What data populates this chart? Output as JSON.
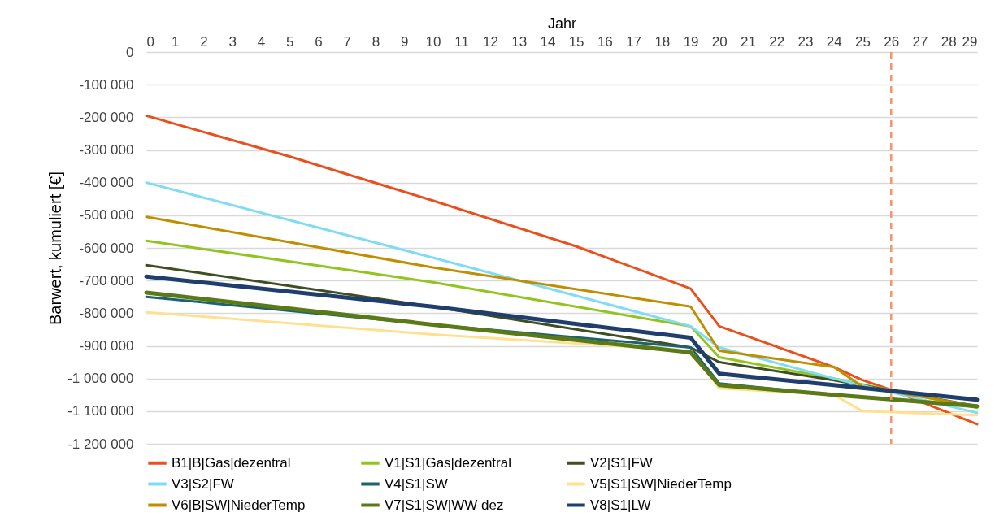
{
  "chart_data": {
    "type": "line",
    "xlabel": "Jahr",
    "ylabel": "Barwert, kumuliert [€]",
    "xlim": [
      0,
      29
    ],
    "xticks": [
      0,
      1,
      2,
      3,
      4,
      5,
      6,
      7,
      8,
      9,
      10,
      11,
      12,
      13,
      14,
      15,
      16,
      17,
      18,
      19,
      20,
      21,
      22,
      23,
      24,
      25,
      26,
      27,
      28,
      29
    ],
    "ylim": [
      -1200000,
      0
    ],
    "yticks": [
      0,
      {
        "value": -100000,
        "label": "-100 000"
      },
      {
        "value": -200000,
        "label": "-200 000"
      },
      {
        "value": -300000,
        "label": "-300 000"
      },
      {
        "value": -400000,
        "label": "-400 000"
      },
      {
        "value": -500000,
        "label": "-500 000"
      },
      {
        "value": -600000,
        "label": "-600 000"
      },
      {
        "value": -700000,
        "label": "-700 000"
      },
      {
        "value": -800000,
        "label": "-800 000"
      },
      {
        "value": -900000,
        "label": "-900 000"
      },
      {
        "value": -1000000,
        "label": "-1 000 000"
      },
      {
        "value": -1100000,
        "label": "-1 100 000"
      },
      {
        "value": -1200000,
        "label": "-1 200 000"
      }
    ],
    "grid": "y",
    "legend": "bottom",
    "marker": "none",
    "line_style": "solid",
    "series": [
      {
        "name": "B1|B|Gas|dezentral",
        "color": "#e8501e",
        "x": [
          0,
          5,
          10,
          15,
          19,
          20,
          24,
          25,
          26,
          29
        ],
        "values": [
          -195000,
          -320000,
          -455000,
          -595000,
          -725000,
          -840000,
          -965000,
          -1005000,
          -1035000,
          -1140000
        ]
      },
      {
        "name": "V1|S1|Gas|dezentral",
        "color": "#92c41f",
        "x": [
          0,
          10,
          19,
          20,
          24,
          29
        ],
        "values": [
          -578000,
          -705000,
          -840000,
          -935000,
          -1000000,
          -1090000
        ]
      },
      {
        "name": "V2|S1|FW",
        "color": "#3f4f21",
        "x": [
          0,
          10,
          19,
          20,
          24,
          29
        ],
        "values": [
          -653000,
          -780000,
          -905000,
          -950000,
          -1005000,
          -1085000
        ]
      },
      {
        "name": "V3|S2|FW",
        "color": "#7fdcf4",
        "x": [
          0,
          10,
          19,
          20,
          24,
          29
        ],
        "values": [
          -400000,
          -630000,
          -840000,
          -905000,
          -1000000,
          -1105000
        ]
      },
      {
        "name": "V4|S1|SW",
        "color": "#1b6372",
        "x": [
          0,
          10,
          19,
          20,
          24,
          29
        ],
        "values": [
          -750000,
          -835000,
          -905000,
          -1015000,
          -1050000,
          -1085000
        ]
      },
      {
        "name": "V5|S1|SW|NiederTemp",
        "color": "#ffe08f",
        "x": [
          0,
          10,
          19,
          20,
          24,
          25,
          29
        ],
        "values": [
          -797000,
          -865000,
          -915000,
          -1030000,
          -1050000,
          -1100000,
          -1112000
        ]
      },
      {
        "name": "V6|B|SW|NiederTemp",
        "color": "#bf8f00",
        "x": [
          0,
          10,
          19,
          20,
          24,
          25,
          29
        ],
        "values": [
          -505000,
          -660000,
          -780000,
          -915000,
          -965000,
          -1025000,
          -1085000
        ]
      },
      {
        "name": "V7|S1|SW|WW dez",
        "color": "#5a7a17",
        "x": [
          0,
          10,
          19,
          20,
          24,
          29
        ],
        "values": [
          -737000,
          -835000,
          -920000,
          -1020000,
          -1050000,
          -1085000
        ]
      },
      {
        "name": "V8|S1|LW",
        "color": "#1f3e6e",
        "x": [
          0,
          10,
          19,
          20,
          24,
          29
        ],
        "values": [
          -688000,
          -780000,
          -875000,
          -985000,
          -1020000,
          -1065000
        ]
      }
    ],
    "ref_lines": [
      {
        "axis": "x",
        "value": 26,
        "color": "#f4956b",
        "line_style": "dashed"
      }
    ]
  }
}
